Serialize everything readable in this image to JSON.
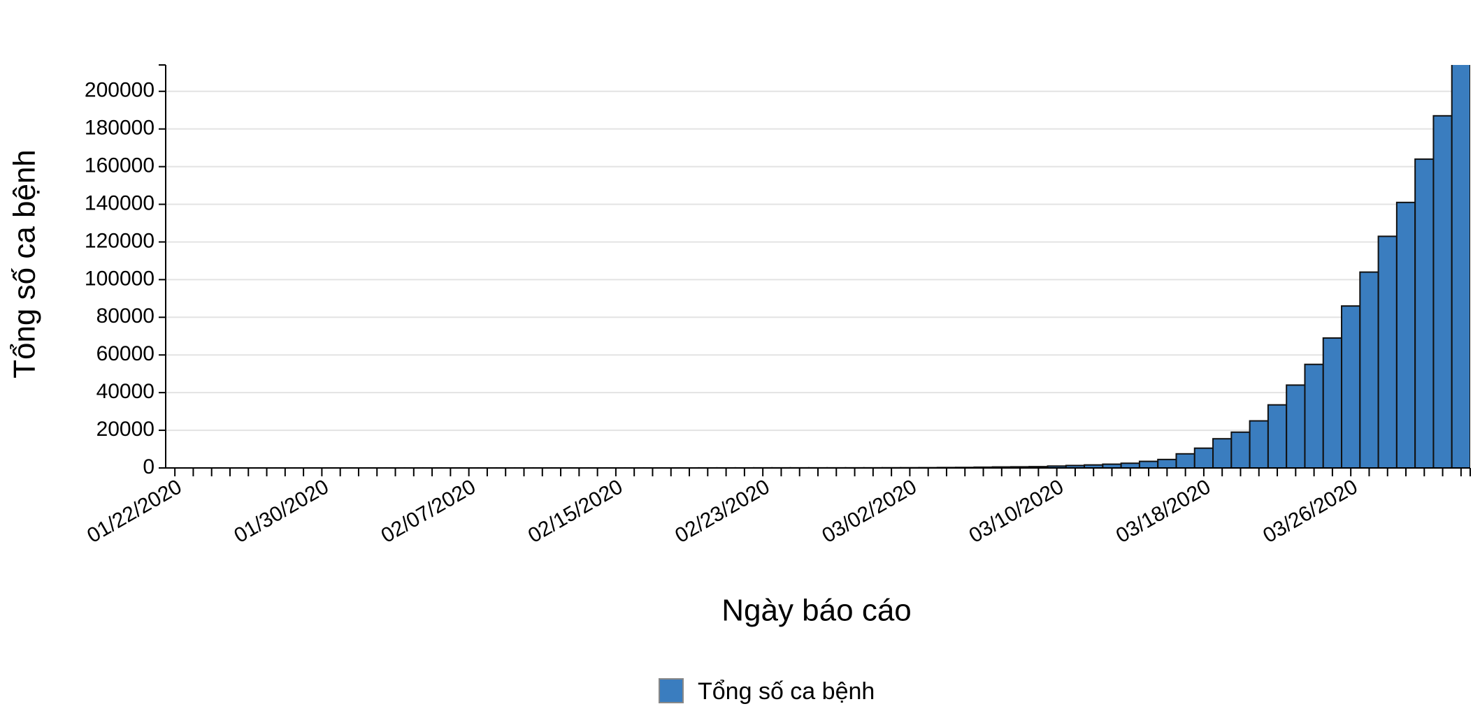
{
  "chart_data": {
    "type": "bar",
    "x_label": "Ngày báo cáo",
    "y_label": "Tổng số ca bệnh",
    "categories": [
      "01/22/2020",
      null,
      null,
      null,
      null,
      null,
      null,
      null,
      "01/30/2020",
      null,
      null,
      null,
      null,
      null,
      null,
      null,
      "02/07/2020",
      null,
      null,
      null,
      null,
      null,
      null,
      null,
      "02/15/2020",
      null,
      null,
      null,
      null,
      null,
      null,
      null,
      "02/23/2020",
      null,
      null,
      null,
      null,
      null,
      null,
      null,
      "03/02/2020",
      null,
      null,
      null,
      null,
      null,
      null,
      null,
      "03/10/2020",
      null,
      null,
      null,
      null,
      null,
      null,
      null,
      "03/18/2020",
      null,
      null,
      null,
      null,
      null,
      null,
      null,
      "03/26/2020",
      null,
      null,
      null,
      null,
      null,
      null
    ],
    "series": [
      {
        "name": "Tổng số ca bệnh",
        "color": "#3a7dbf",
        "values": [
          1,
          1,
          2,
          2,
          5,
          5,
          5,
          5,
          5,
          7,
          8,
          8,
          11,
          11,
          11,
          11,
          11,
          11,
          11,
          11,
          11,
          13,
          13,
          13,
          15,
          15,
          15,
          15,
          15,
          35,
          35,
          35,
          53,
          53,
          59,
          60,
          62,
          70,
          76,
          101,
          122,
          153,
          221,
          278,
          417,
          537,
          605,
          700,
          1000,
          1300,
          1600,
          2000,
          2500,
          3500,
          4500,
          7500,
          10500,
          15500,
          19000,
          25000,
          33500,
          44000,
          55000,
          69000,
          86000,
          104000,
          123000,
          141000,
          164000,
          187000,
          215000
        ]
      }
    ],
    "ylim": [
      0,
      214000
    ],
    "yticks": [
      0,
      20000,
      40000,
      60000,
      80000,
      100000,
      120000,
      140000,
      160000,
      180000,
      200000
    ],
    "grid": true
  }
}
